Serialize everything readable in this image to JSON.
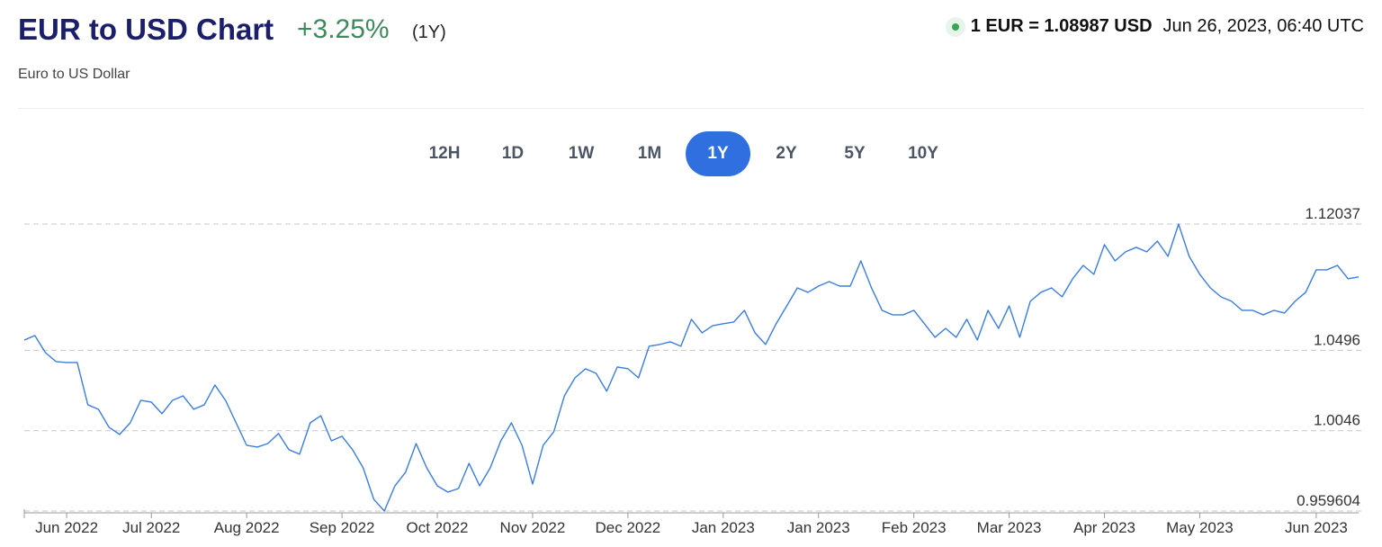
{
  "header": {
    "title": "EUR to USD Chart",
    "change": "+3.25%",
    "period": "(1Y)",
    "subtitle": "Euro to US Dollar",
    "rate": "1 EUR = 1.08987 USD",
    "timestamp": "Jun 26, 2023, 06:40 UTC"
  },
  "range_buttons": {
    "options": [
      "12H",
      "1D",
      "1W",
      "1M",
      "1Y",
      "2Y",
      "5Y",
      "10Y"
    ],
    "active": "1Y"
  },
  "chart_data": {
    "type": "line",
    "categories": [
      null,
      null,
      null,
      null,
      "Jun 2022",
      null,
      null,
      null,
      null,
      null,
      null,
      null,
      "Jul 2022",
      null,
      null,
      null,
      null,
      null,
      null,
      null,
      null,
      "Aug 2022",
      null,
      null,
      null,
      null,
      null,
      null,
      null,
      null,
      "Sep 2022",
      null,
      null,
      null,
      null,
      null,
      null,
      null,
      null,
      "Oct 2022",
      null,
      null,
      null,
      null,
      null,
      null,
      null,
      null,
      "Nov 2022",
      null,
      null,
      null,
      null,
      null,
      null,
      null,
      null,
      "Dec 2022",
      null,
      null,
      null,
      null,
      null,
      null,
      null,
      null,
      "Jan 2023",
      null,
      null,
      null,
      null,
      null,
      null,
      null,
      null,
      "Jan 2023",
      null,
      null,
      null,
      null,
      null,
      null,
      null,
      null,
      "Feb 2023",
      null,
      null,
      null,
      null,
      null,
      null,
      null,
      null,
      "Mar 2023",
      null,
      null,
      null,
      null,
      null,
      null,
      null,
      null,
      "Apr 2023",
      null,
      null,
      null,
      null,
      null,
      null,
      null,
      null,
      "May 2023",
      null,
      null,
      null,
      null,
      null,
      null,
      null,
      null,
      null,
      null,
      "Jun 2023",
      null,
      null,
      null,
      null
    ],
    "series": [
      {
        "name": "EUR/USD",
        "color": "#3b7ddd",
        "values": [
          1.0554,
          1.0579,
          1.0483,
          1.0433,
          1.0428,
          1.0428,
          1.0191,
          1.0166,
          1.0065,
          1.0025,
          1.009,
          1.0216,
          1.0206,
          1.0141,
          1.0216,
          1.0241,
          1.0166,
          1.0191,
          1.0302,
          1.0216,
          1.009,
          0.9964,
          0.9954,
          0.9974,
          1.003,
          0.9939,
          0.9914,
          1.009,
          1.013,
          0.9989,
          1.0015,
          0.9939,
          0.9838,
          0.9662,
          0.9596,
          0.9737,
          0.9813,
          0.9974,
          0.9838,
          0.9737,
          0.9702,
          0.9722,
          0.9863,
          0.9737,
          0.9838,
          0.9989,
          1.009,
          0.9964,
          0.9747,
          0.9964,
          1.004,
          1.0241,
          1.0342,
          1.0393,
          1.0367,
          1.0267,
          1.0403,
          1.0393,
          1.0342,
          1.0519,
          1.0529,
          1.0544,
          1.0519,
          1.067,
          1.0594,
          1.0634,
          1.0645,
          1.0655,
          1.072,
          1.0594,
          1.0529,
          1.0645,
          1.0745,
          1.0846,
          1.0821,
          1.0856,
          1.0881,
          1.0856,
          1.0856,
          1.0997,
          1.0846,
          1.072,
          1.0695,
          1.0695,
          1.072,
          1.0645,
          1.0569,
          1.0619,
          1.0569,
          1.067,
          1.0554,
          1.072,
          1.0619,
          1.0745,
          1.0569,
          1.0771,
          1.0821,
          1.0846,
          1.0796,
          1.0897,
          1.0972,
          1.0922,
          1.1088,
          1.0997,
          1.1048,
          1.1073,
          1.1048,
          1.1108,
          1.1023,
          1.1203,
          1.1023,
          1.0922,
          1.0846,
          1.0796,
          1.0771,
          1.072,
          1.072,
          1.0695,
          1.072,
          1.0705,
          1.0771,
          1.0821,
          1.0947,
          1.0947,
          1.0972,
          1.0897,
          1.0907
        ]
      }
    ],
    "ylim": [
      0.959604,
      1.12037
    ],
    "yticks": [
      0.959604,
      1.0046,
      1.0496,
      1.12037
    ],
    "grid": true
  }
}
